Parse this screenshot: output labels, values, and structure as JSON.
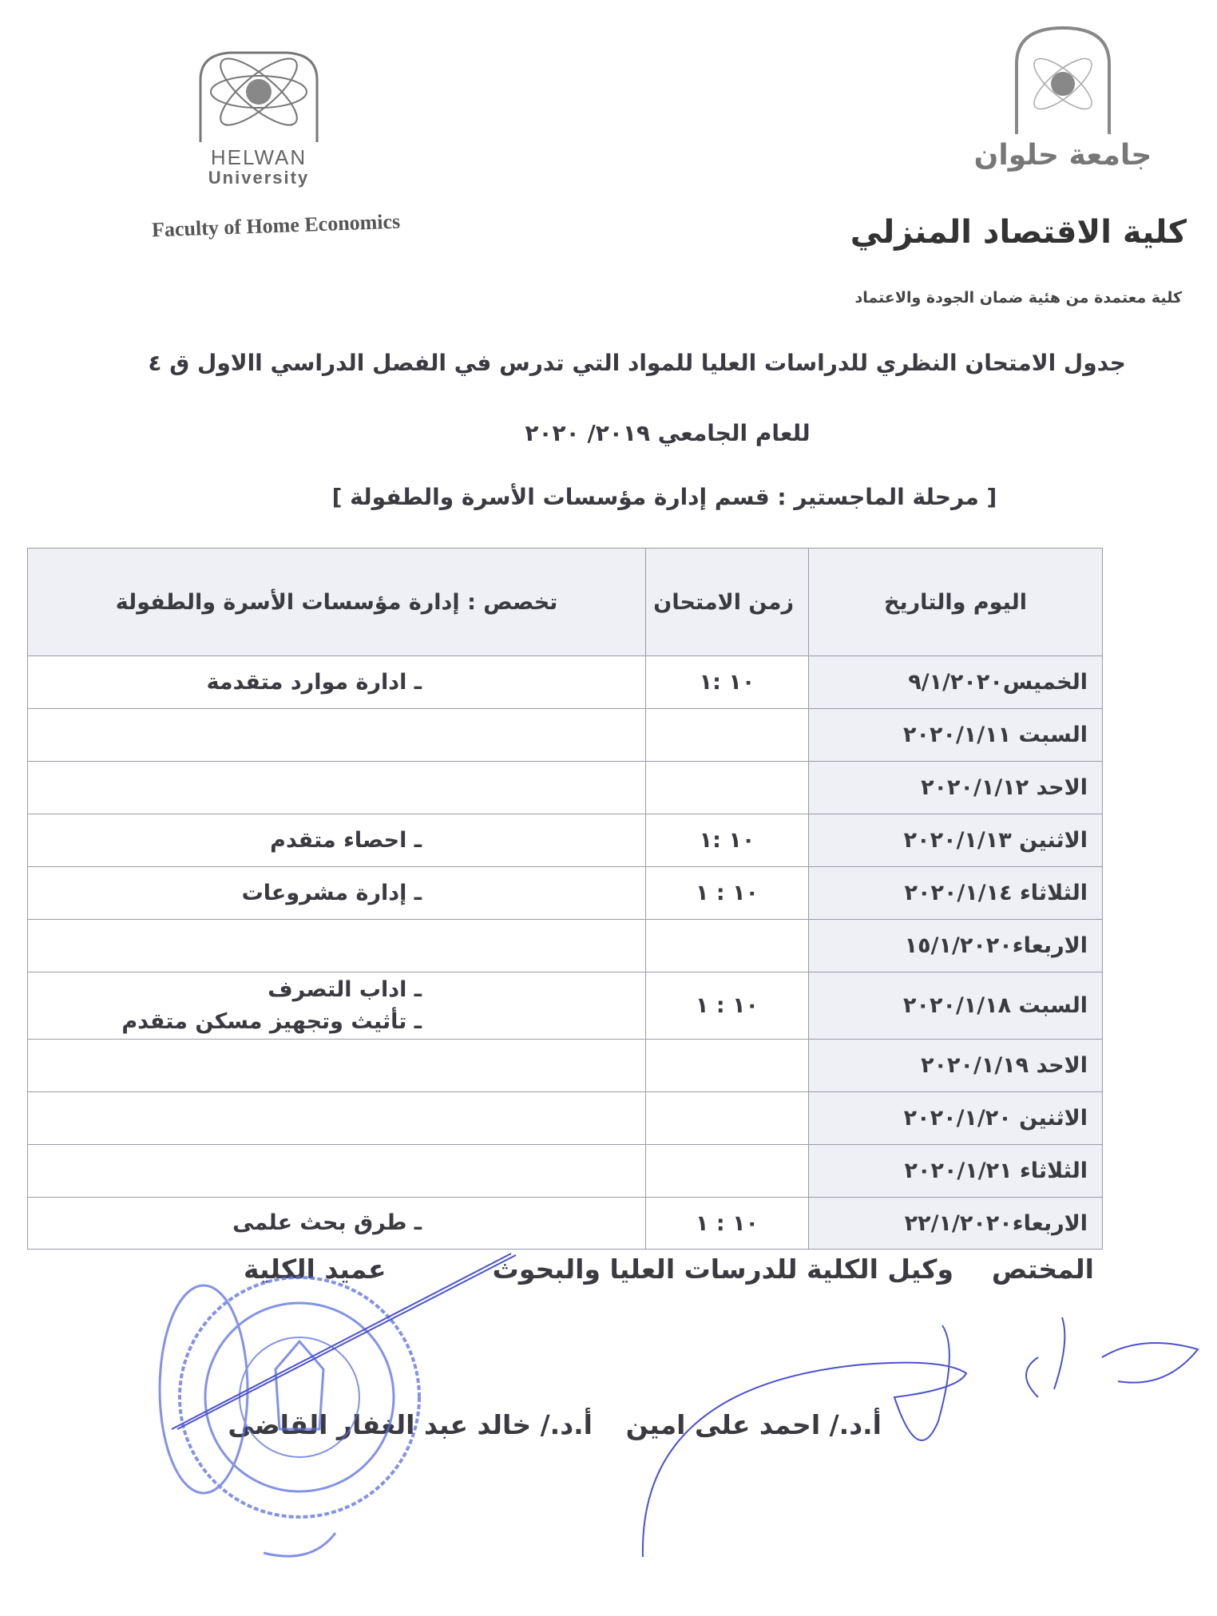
{
  "header": {
    "left_logo_text_line1": "HELWAN",
    "left_logo_text_line2": "University",
    "faculty_en": "Faculty of Home Economics",
    "right_logo_text": "جامعة حلوان",
    "faculty_ar": "كلية الاقتصاد المنزلي",
    "accreditation": "كلية معتمدة من هئية ضمان الجودة والاعتماد"
  },
  "titles": {
    "line1": "جدول الامتحان النظري للدراسات العليا للمواد التي تدرس في الفصل الدراسي االاول ق ٤",
    "line2": "للعام الجامعي ٢٠١٩/ ٢٠٢٠",
    "line3": "[ مرحلة الماجستير : قسم إدارة مؤسسات الأسرة والطفولة ]"
  },
  "table": {
    "headers": {
      "date": "اليوم والتاريخ",
      "time": "زمن الامتحان",
      "subject": "تخصص : إدارة مؤسسات الأسرة والطفولة"
    },
    "rows": [
      {
        "date": "الخميس٩/١/٢٠٢٠",
        "time": "١٠ :١",
        "subjects": [
          "ـ ادارة موارد متقدمة"
        ]
      },
      {
        "date": "السبت ٢٠٢٠/١/١١",
        "time": "",
        "subjects": []
      },
      {
        "date": "الاحد ٢٠٢٠/١/١٢",
        "time": "",
        "subjects": []
      },
      {
        "date": "الاثنين ٢٠٢٠/١/١٣",
        "time": "١٠ :١",
        "subjects": [
          "ـ احصاء متقدم"
        ]
      },
      {
        "date": "الثلاثاء ٢٠٢٠/١/١٤",
        "time": "١٠ : ١",
        "subjects": [
          "ـ إدارة مشروعات"
        ]
      },
      {
        "date": "الاربعاء١٥/١/٢٠٢٠",
        "time": "",
        "subjects": []
      },
      {
        "date": "السبت ٢٠٢٠/١/١٨",
        "time": "١٠ : ١",
        "subjects": [
          "ـ اداب التصرف",
          "ـ تأثيث وتجهيز مسكن متقدم"
        ]
      },
      {
        "date": "الاحد ٢٠٢٠/١/١٩",
        "time": "",
        "subjects": []
      },
      {
        "date": "الاثنين ٢٠٢٠/١/٢٠",
        "time": "",
        "subjects": []
      },
      {
        "date": "الثلاثاء ٢٠٢٠/١/٢١",
        "time": "",
        "subjects": []
      },
      {
        "date": "الاربعاء٢٢/١/٢٠٢٠",
        "time": "١٠ : ١",
        "subjects": [
          "ـ طرق بحث علمى"
        ]
      }
    ]
  },
  "signatures": {
    "specialist": "المختص",
    "vice_dean": "وكيل الكلية للدرسات العليا والبحوث",
    "dean": "عميد الكلية",
    "vice_dean_name": "أ.د./ احمد على امين",
    "dean_name": "أ.د./ خالد عبد الغفار القاضى",
    "handwritten_note": "هنا قوطب"
  },
  "stamp_color": "#5a6ee0"
}
